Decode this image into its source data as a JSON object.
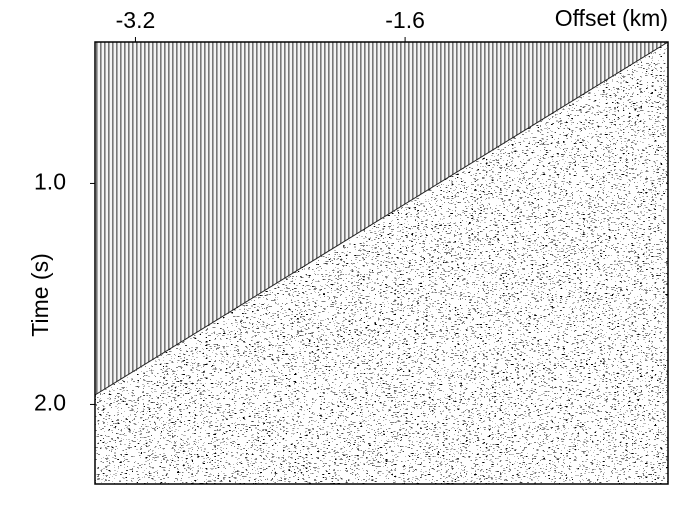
{
  "chart_data": {
    "type": "seismic",
    "xlabel": "Offset (km)",
    "ylabel": "Time (s)",
    "xlim": [
      -3.44,
      -0.04
    ],
    "xticks": [
      -3.2,
      -1.6
    ],
    "ylim": [
      0.36,
      2.36
    ],
    "yticks": [
      {
        "value": 1,
        "label": "1.0"
      },
      {
        "value": 2,
        "label": "2.0"
      }
    ]
  }
}
